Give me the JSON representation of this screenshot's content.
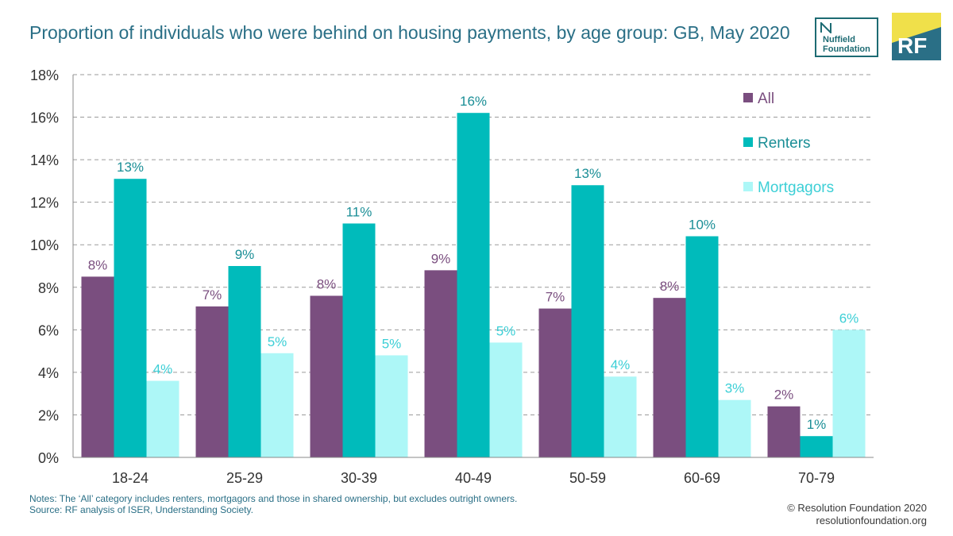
{
  "header": {
    "title": "Proportion of individuals who were behind on housing payments, by age group: GB, May 2020",
    "logos": [
      {
        "name": "nuffield-foundation-logo",
        "line1": "Nuffield",
        "line2": "Foundation",
        "color": "#1d6b73"
      },
      {
        "name": "resolution-foundation-logo",
        "text": "RF",
        "accent": "#f0e04a",
        "background": "#2a6f86"
      }
    ]
  },
  "chart_data": {
    "type": "bar",
    "categories": [
      "18-24",
      "25-29",
      "30-39",
      "40-49",
      "50-59",
      "60-69",
      "70-79"
    ],
    "series": [
      {
        "name": "All",
        "color": "#7a4e7f",
        "label_color": "#7a4e7f",
        "values": [
          8.5,
          7.1,
          7.6,
          8.8,
          7.0,
          7.5,
          2.4
        ],
        "labels": [
          "8%",
          "7%",
          "8%",
          "9%",
          "7%",
          "8%",
          "2%"
        ]
      },
      {
        "name": "Renters",
        "color": "#00bbbb",
        "label_color": "#1a8e96",
        "values": [
          13.1,
          9.0,
          11.0,
          16.2,
          12.8,
          10.4,
          1.0
        ],
        "labels": [
          "13%",
          "9%",
          "11%",
          "16%",
          "13%",
          "10%",
          "1%"
        ]
      },
      {
        "name": "Mortgagors",
        "color": "#adf7f7",
        "label_color": "#3ccfd6",
        "values": [
          3.6,
          4.9,
          4.8,
          5.4,
          3.8,
          2.7,
          6.0
        ],
        "labels": [
          "4%",
          "5%",
          "5%",
          "5%",
          "4%",
          "3%",
          "6%"
        ]
      }
    ],
    "ylim": [
      0,
      18
    ],
    "yticks": [
      0,
      2,
      4,
      6,
      8,
      10,
      12,
      14,
      16,
      18
    ],
    "ytick_labels": [
      "0%",
      "2%",
      "4%",
      "6%",
      "8%",
      "10%",
      "12%",
      "14%",
      "16%",
      "18%"
    ],
    "grid": true,
    "legend_position": "top-right"
  },
  "footer": {
    "notes": "Notes: The ‘All’ category includes renters, mortgagors and those in shared ownership, but excludes outright owners.",
    "source": "Source: RF analysis of ISER, Understanding Society.",
    "copyright": "© Resolution Foundation 2020",
    "website": "resolutionfoundation.org"
  }
}
